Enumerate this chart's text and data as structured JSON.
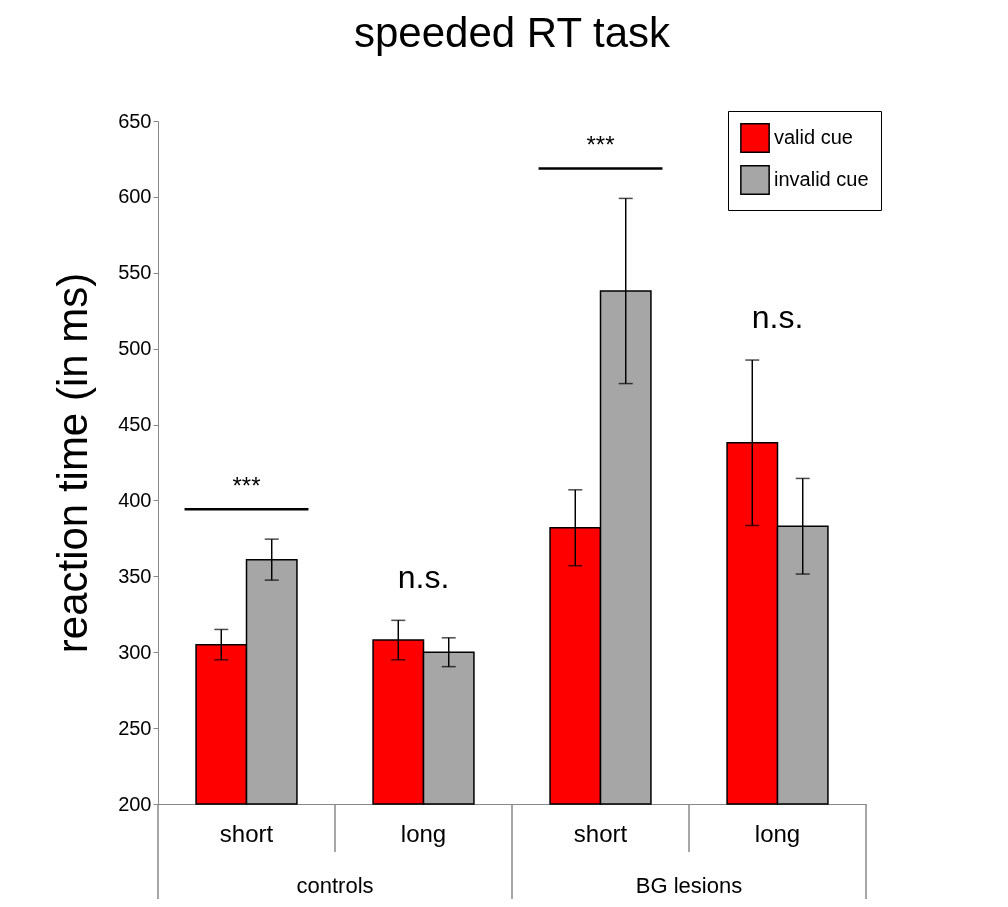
{
  "chart_data": {
    "type": "bar",
    "title": "speeded RT task",
    "ylabel": "reaction time (in ms)",
    "categories": [
      "short",
      "long",
      "short",
      "long"
    ],
    "series": [
      {
        "name": "valid cue",
        "color": "#ff0000",
        "values": [
          305,
          308,
          382,
          438
        ],
        "errors": [
          10,
          13,
          25,
          54.5
        ]
      },
      {
        "name": "invalid cue",
        "color": "#a6a6a6",
        "values": [
          361,
          300,
          538,
          383
        ],
        "errors": [
          13.5,
          9.5,
          61,
          31.5
        ]
      }
    ],
    "ylim": [
      200,
      650
    ],
    "yticks": [
      200,
      250,
      300,
      350,
      400,
      450,
      500,
      550,
      600,
      650
    ],
    "grid": false,
    "legend": "top right",
    "annotations": [
      "***",
      "n.s.",
      "***",
      "n.s.",
      "controls",
      "BG lesions"
    ]
  }
}
